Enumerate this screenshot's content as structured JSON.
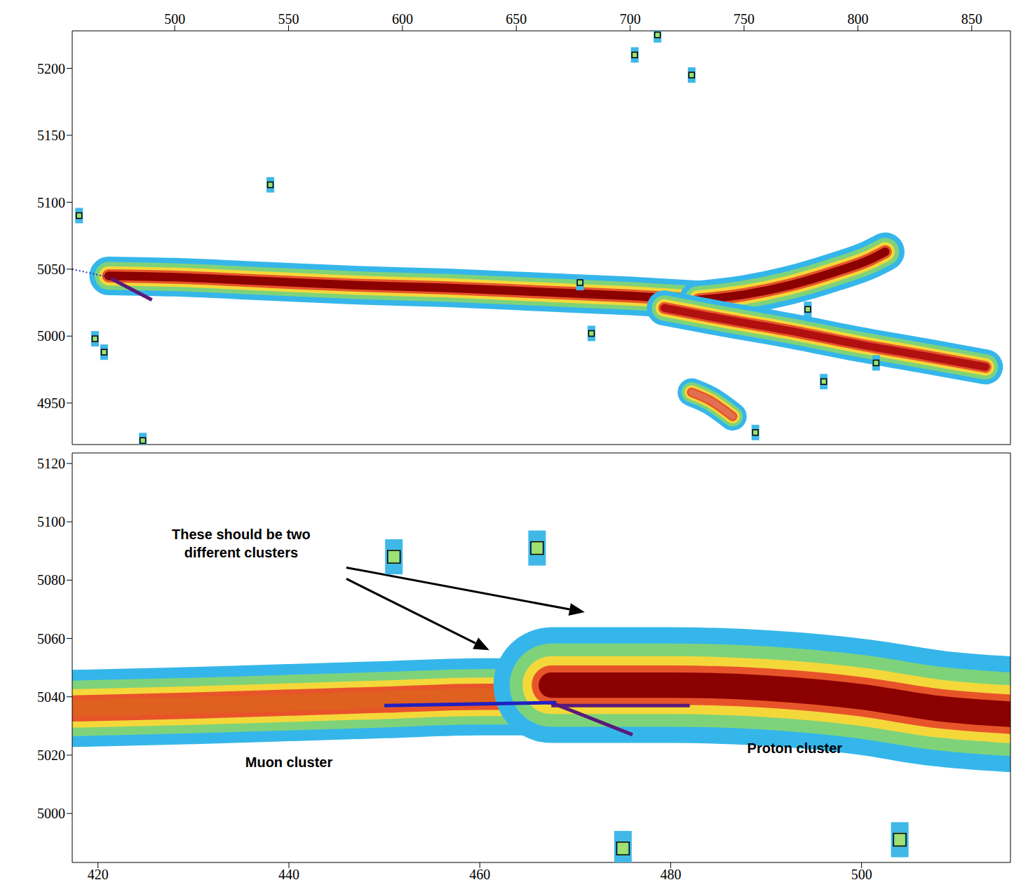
{
  "chart_data": [
    {
      "type": "line",
      "xlim": [
        455,
        867
      ],
      "xticks": [
        500,
        550,
        600,
        650,
        700,
        750,
        800,
        850
      ],
      "ylim": [
        4919,
        5228
      ],
      "yticks": [
        4950,
        5000,
        5050,
        5100,
        5150,
        5200
      ],
      "tick_labels": true,
      "series": [
        {
          "type": "track",
          "color": "#8b0000",
          "x": [
            471,
            500,
            540,
            580,
            620,
            660,
            700,
            730
          ],
          "values": [
            5045,
            5044,
            5041,
            5038,
            5036,
            5033,
            5030,
            5027
          ]
        },
        {
          "type": "track",
          "color": "#8b0000",
          "x": [
            730,
            750,
            770,
            790,
            805,
            812
          ],
          "values": [
            5027,
            5031,
            5038,
            5048,
            5057,
            5063
          ]
        },
        {
          "type": "track",
          "color": "#b01010",
          "x": [
            715,
            740,
            770,
            800,
            830,
            856
          ],
          "values": [
            5021,
            5013,
            5004,
            4994,
            4985,
            4977
          ]
        },
        {
          "type": "track",
          "color": "#e07050",
          "x": [
            727,
            735,
            745
          ],
          "values": [
            4958,
            4952,
            4940
          ]
        },
        {
          "type": "line",
          "color": "#5a1a7a",
          "x": [
            472,
            490
          ],
          "values": [
            5043,
            5027
          ]
        },
        {
          "type": "line",
          "color": "#3030c0",
          "line_style": "dotted",
          "x": [
            455,
            471
          ],
          "values": [
            5050,
            5044
          ]
        },
        {
          "type": "scatter",
          "color": "#3fb8e8",
          "x": [
            458,
            465,
            469,
            486,
            542,
            702,
            712,
            727,
            678,
            683,
            785,
            778,
            808,
            755
          ],
          "values": [
            5090,
            4998,
            4988,
            4922,
            5113,
            5210,
            5225,
            5195,
            5040,
            5002,
            4966,
            5020,
            4980,
            4928
          ]
        }
      ]
    },
    {
      "type": "line",
      "xlim": [
        417.3,
        515.6
      ],
      "xticks": [
        420,
        440,
        460,
        480,
        500
      ],
      "ylim": [
        4983.2,
        5123.6
      ],
      "yticks": [
        5000,
        5020,
        5040,
        5060,
        5080,
        5100,
        5120
      ],
      "tick_labels": true,
      "series": [
        {
          "type": "track",
          "color": "#e06020",
          "x": [
            417.3,
            430,
            440,
            450,
            460,
            467.5
          ],
          "values": [
            5036,
            5037,
            5038,
            5039,
            5040,
            5040
          ]
        },
        {
          "type": "track",
          "color": "#8b0000",
          "x": [
            467.5,
            480,
            490,
            500,
            508,
            515.6
          ],
          "values": [
            5044,
            5044,
            5043,
            5040,
            5036,
            5034
          ]
        },
        {
          "type": "line",
          "color": "#5a1a7a",
          "x": [
            467.5,
            476
          ],
          "values": [
            5038,
            5027
          ]
        },
        {
          "type": "line",
          "color": "#5a1a7a",
          "x": [
            467.5,
            482
          ],
          "values": [
            5037,
            5037
          ]
        },
        {
          "type": "line",
          "color": "#2020c0",
          "x": [
            450,
            468
          ],
          "values": [
            5037,
            5038
          ]
        },
        {
          "type": "scatter",
          "color": "#3fb8e8",
          "x": [
            451,
            466,
            475,
            504
          ],
          "values": [
            5088,
            5091,
            4988,
            4991
          ]
        }
      ],
      "annotations": [
        {
          "text": "These should be two different clusters",
          "x": 435,
          "y": 5092,
          "points_to": [
            {
              "x": 471,
              "y": 5069
            },
            {
              "x": 461,
              "y": 5056
            }
          ]
        },
        {
          "text": "Muon cluster",
          "x": 440,
          "y": 5017
        },
        {
          "text": "Proton cluster",
          "x": 493,
          "y": 5022
        }
      ]
    }
  ]
}
